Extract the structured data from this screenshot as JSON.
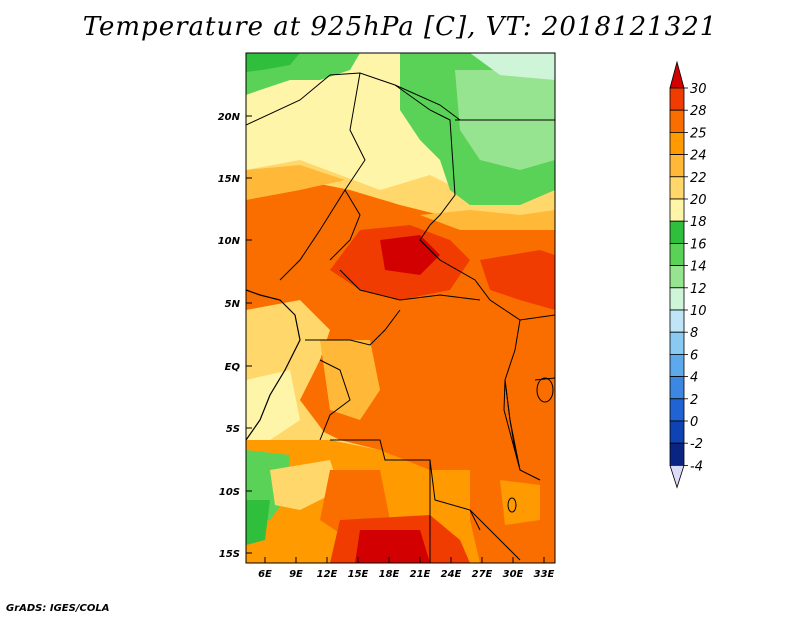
{
  "title": "Temperature at 925hPa [C], VT: 2018121321",
  "footer": "GrADS: IGES/COLA",
  "map": {
    "lat_labels": [
      "20N",
      "15N",
      "10N",
      "5N",
      "EQ",
      "5S",
      "10S",
      "15S"
    ],
    "lon_labels": [
      "6E",
      "9E",
      "12E",
      "15E",
      "18E",
      "21E",
      "24E",
      "27E",
      "30E",
      "33E"
    ]
  },
  "colorbar": {
    "levels": [
      "30",
      "28",
      "25",
      "24",
      "22",
      "20",
      "18",
      "16",
      "14",
      "12",
      "10",
      "8",
      "6",
      "4",
      "2",
      "0",
      "-2",
      "-4"
    ],
    "colors": [
      "#d20000",
      "#f03c00",
      "#fa6e00",
      "#ff9a00",
      "#ffb838",
      "#ffd76a",
      "#fff5a8",
      "#2fbf3c",
      "#5ad257",
      "#96e490",
      "#cff5d8",
      "#bfe5f7",
      "#8ac9f2",
      "#5ea9ec",
      "#3b87e1",
      "#1f64d2",
      "#0f43b4",
      "#0a2481",
      "#0a0f58"
    ]
  }
}
